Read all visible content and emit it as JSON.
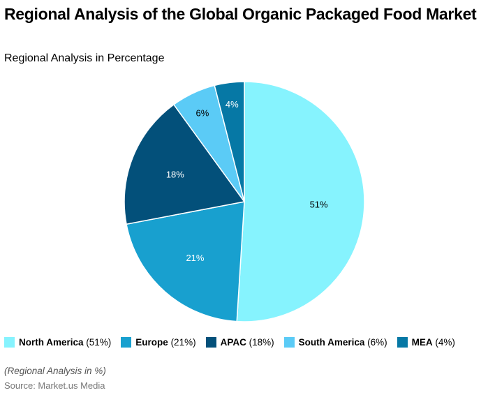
{
  "title": "Regional Analysis of the Global Organic Packaged Food Market",
  "subtitle": "Regional Analysis in Percentage",
  "note": "(Regional Analysis in %)",
  "source": "Source: Market.us Media",
  "chart_data": {
    "type": "pie",
    "title": "Regional Analysis of the Global Organic Packaged Food Market",
    "subtitle": "Regional Analysis in Percentage",
    "legend_position": "bottom",
    "slices": [
      {
        "name": "North America",
        "value": 51,
        "label": "51%",
        "legend_pct": "(51%)",
        "color": "#86f3fe",
        "text_color": "#000000"
      },
      {
        "name": "Europe",
        "value": 21,
        "label": "21%",
        "legend_pct": "(21%)",
        "color": "#18a0cf",
        "text_color": "#ffffff"
      },
      {
        "name": "APAC",
        "value": 18,
        "label": "18%",
        "legend_pct": "(18%)",
        "color": "#03507a",
        "text_color": "#ffffff"
      },
      {
        "name": "South America",
        "value": 6,
        "label": "6%",
        "legend_pct": "(6%)",
        "color": "#5bcbf6",
        "text_color": "#000000"
      },
      {
        "name": "MEA",
        "value": 4,
        "label": "4%",
        "legend_pct": "(4%)",
        "color": "#0678a5",
        "text_color": "#ffffff"
      }
    ]
  }
}
